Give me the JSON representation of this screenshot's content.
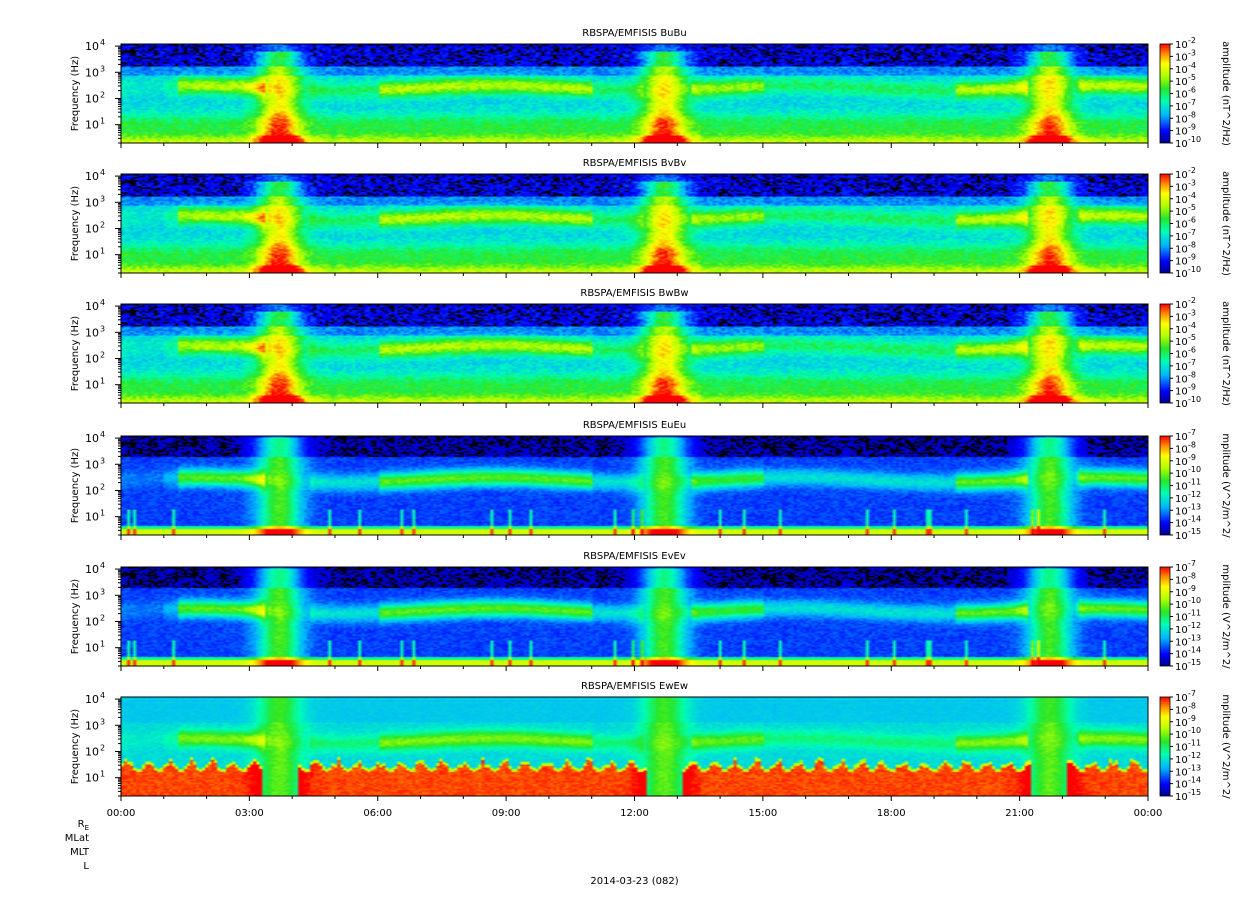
{
  "chart_data": {
    "type": "heatmap",
    "date_label": "2014-03-23 (082)",
    "x_axis": {
      "range": [
        "2014-03-23T00:00",
        "2014-03-24T00:00"
      ],
      "tick_labels": [
        "00:00",
        "03:00",
        "06:00",
        "09:00",
        "12:00",
        "15:00",
        "18:00",
        "21:00",
        "00:00"
      ],
      "tick_hours": [
        0,
        3,
        6,
        9,
        12,
        15,
        18,
        21,
        24
      ],
      "minor_tick_interval_minutes": 60
    },
    "ephemeris_labels": [
      "RE",
      "MLat",
      "MLT",
      "L"
    ],
    "panels": [
      {
        "title": "RBSPA/EMFISIS  BuBu",
        "ylabel": "Frequency (Hz)",
        "ylim": [
          2,
          12000
        ],
        "yscale": "log",
        "ytick_exponents": [
          "4",
          "3",
          "2",
          "1"
        ],
        "cbar_label": "amplitude (nT^2/Hz)",
        "clim_exp": [
          -10,
          -2
        ],
        "cbar_tick_exponents": [
          "-2",
          "-3",
          "-4",
          "-5",
          "-6",
          "-7",
          "-8",
          "-9",
          "-10"
        ],
        "kind": "B"
      },
      {
        "title": "RBSPA/EMFISIS  BvBv",
        "ylabel": "Frequency (Hz)",
        "ylim": [
          2,
          12000
        ],
        "yscale": "log",
        "ytick_exponents": [
          "4",
          "3",
          "2",
          "1"
        ],
        "cbar_label": "amplitude (nT^2/Hz)",
        "clim_exp": [
          -10,
          -2
        ],
        "cbar_tick_exponents": [
          "-2",
          "-3",
          "-4",
          "-5",
          "-6",
          "-7",
          "-8",
          "-9",
          "-10"
        ],
        "kind": "B"
      },
      {
        "title": "RBSPA/EMFISIS  BwBw",
        "ylabel": "Frequency (Hz)",
        "ylim": [
          2,
          12000
        ],
        "yscale": "log",
        "ytick_exponents": [
          "4",
          "3",
          "2",
          "1"
        ],
        "cbar_label": "amplitude (nT^2/Hz)",
        "clim_exp": [
          -10,
          -2
        ],
        "cbar_tick_exponents": [
          "-2",
          "-3",
          "-4",
          "-5",
          "-6",
          "-7",
          "-8",
          "-9",
          "-10"
        ],
        "kind": "B"
      },
      {
        "title": "RBSPA/EMFISIS  EuEu",
        "ylabel": "Frequency (Hz)",
        "ylim": [
          2,
          12000
        ],
        "yscale": "log",
        "ytick_exponents": [
          "4",
          "3",
          "2",
          "1"
        ],
        "cbar_label": "mplitude (V^2/m^2/",
        "clim_exp": [
          -15,
          -7
        ],
        "cbar_tick_exponents": [
          "-7",
          "-8",
          "-9",
          "-10",
          "-11",
          "-12",
          "-13",
          "-14",
          "-15"
        ],
        "kind": "E"
      },
      {
        "title": "RBSPA/EMFISIS  EvEv",
        "ylabel": "Frequency (Hz)",
        "ylim": [
          2,
          12000
        ],
        "yscale": "log",
        "ytick_exponents": [
          "4",
          "3",
          "2",
          "1"
        ],
        "cbar_label": "mplitude (V^2/m^2/",
        "clim_exp": [
          -15,
          -7
        ],
        "cbar_tick_exponents": [
          "-7",
          "-8",
          "-9",
          "-10",
          "-11",
          "-12",
          "-13",
          "-14",
          "-15"
        ],
        "kind": "E"
      },
      {
        "title": "RBSPA/EMFISIS  EwEw",
        "ylabel": "Frequency (Hz)",
        "ylim": [
          2,
          12000
        ],
        "yscale": "log",
        "ytick_exponents": [
          "4",
          "3",
          "2",
          "1"
        ],
        "cbar_label": "mplitude (V^2/m^2/",
        "clim_exp": [
          -15,
          -7
        ],
        "cbar_tick_exponents": [
          "-7",
          "-8",
          "-9",
          "-10",
          "-11",
          "-12",
          "-13",
          "-14",
          "-15"
        ],
        "kind": "Ew"
      }
    ],
    "features": {
      "chorus_band_hz": [
        100,
        700
      ],
      "hiss_band_hz": [
        100,
        500
      ],
      "low_freq_band_hz": [
        2,
        15
      ],
      "perigee_hours": [
        3.7,
        12.7,
        21.7
      ]
    }
  }
}
